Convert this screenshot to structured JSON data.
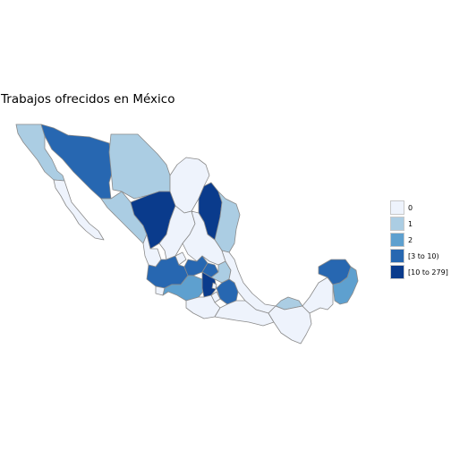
{
  "title": "Trabajos ofrecidos en México",
  "legend": {
    "items": [
      {
        "label": "0",
        "color": "#eef3fc"
      },
      {
        "label": "1",
        "color": "#abcde3"
      },
      {
        "label": "2",
        "color": "#5ea0cf"
      },
      {
        "label": "[3 to 10)",
        "color": "#2767b1"
      },
      {
        "label": "[10 to 279]",
        "color": "#0a3b8c"
      }
    ]
  },
  "regions": [
    {
      "name": "Baja California",
      "category": "1"
    },
    {
      "name": "Baja California Sur",
      "category": "0"
    },
    {
      "name": "Sonora",
      "category": "[3 to 10)"
    },
    {
      "name": "Chihuahua",
      "category": "1"
    },
    {
      "name": "Coahuila",
      "category": "0"
    },
    {
      "name": "Nuevo León",
      "category": "[10 to 279]"
    },
    {
      "name": "Tamaulipas",
      "category": "1"
    },
    {
      "name": "Sinaloa",
      "category": "1"
    },
    {
      "name": "Durango",
      "category": "[10 to 279]"
    },
    {
      "name": "Zacatecas",
      "category": "0"
    },
    {
      "name": "San Luis Potosí",
      "category": "0"
    },
    {
      "name": "Nayarit",
      "category": "0"
    },
    {
      "name": "Jalisco",
      "category": "[3 to 10)"
    },
    {
      "name": "Aguascalientes",
      "category": "0"
    },
    {
      "name": "Guanajuato",
      "category": "[3 to 10)"
    },
    {
      "name": "Querétaro",
      "category": "[3 to 10)"
    },
    {
      "name": "Hidalgo",
      "category": "1"
    },
    {
      "name": "Veracruz",
      "category": "0"
    },
    {
      "name": "Colima",
      "category": "0"
    },
    {
      "name": "Michoacán",
      "category": "2"
    },
    {
      "name": "Estado de México",
      "category": "[10 to 279]"
    },
    {
      "name": "Ciudad de México",
      "category": "0"
    },
    {
      "name": "Morelos",
      "category": "0"
    },
    {
      "name": "Tlaxcala",
      "category": "0"
    },
    {
      "name": "Puebla",
      "category": "[3 to 10)"
    },
    {
      "name": "Guerrero",
      "category": "0"
    },
    {
      "name": "Oaxaca",
      "category": "0"
    },
    {
      "name": "Tabasco",
      "category": "1"
    },
    {
      "name": "Chiapas",
      "category": "0"
    },
    {
      "name": "Campeche",
      "category": "0"
    },
    {
      "name": "Yucatán",
      "category": "[3 to 10)"
    },
    {
      "name": "Quintana Roo",
      "category": "2"
    }
  ]
}
